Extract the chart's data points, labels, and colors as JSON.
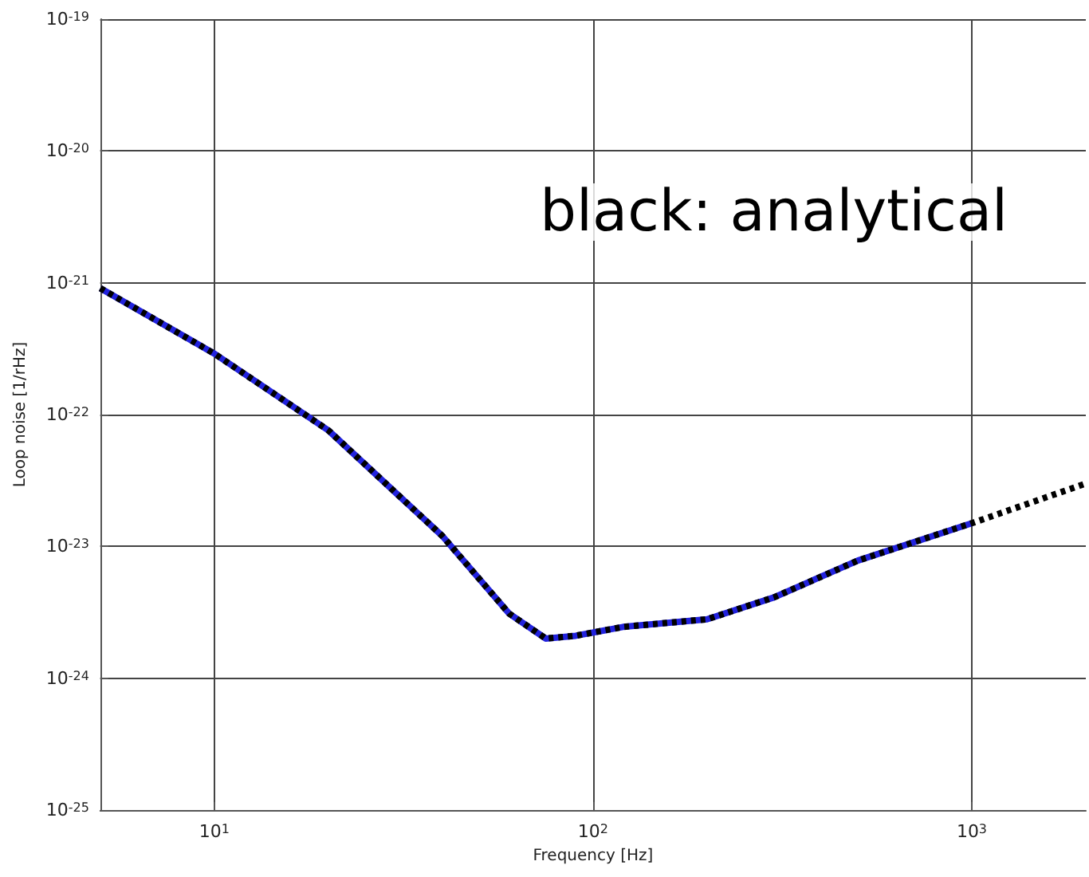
{
  "chart_data": {
    "type": "line",
    "xlabel": "Frequency [Hz]",
    "ylabel": "Loop noise [1/rHz]",
    "log": "xy",
    "grid": true,
    "marker": "none",
    "xlim": [
      5,
      2000
    ],
    "ylim": [
      1e-25,
      1e-19
    ],
    "xticks": [
      {
        "value": 10,
        "label": "10$^{1}$"
      },
      {
        "value": 100,
        "label": "10$^{2}$"
      },
      {
        "value": 1000,
        "label": "10$^{3}$"
      }
    ],
    "yticks": [
      {
        "value": 1e-25,
        "label": "10$^{-25}$"
      },
      {
        "value": 1e-24,
        "label": "10$^{-24}$"
      },
      {
        "value": 1e-23,
        "label": "10$^{-23}$"
      },
      {
        "value": 1e-22,
        "label": "10$^{-22}$"
      },
      {
        "value": 1e-21,
        "label": "10$^{-21}$"
      },
      {
        "value": 1e-20,
        "label": "10$^{-20}$"
      },
      {
        "value": 1e-19,
        "label": "10$^{-19}$"
      }
    ],
    "annotations": [
      "black: analytical"
    ],
    "series": [
      {
        "color": "#2222dd",
        "line_style": "solid",
        "x": [
          5,
          10,
          20,
          40,
          60,
          75,
          90,
          120,
          200,
          300,
          500,
          1000
        ],
        "values": [
          9.1e-22,
          2.9e-22,
          7.6e-23,
          1.2e-23,
          3.1e-24,
          2e-24,
          2.1e-24,
          2.45e-24,
          2.8e-24,
          4.1e-24,
          7.8e-24,
          1.5e-23
        ]
      },
      {
        "color": "#000000",
        "line_style": "dotted",
        "x": [
          5,
          10,
          20,
          40,
          60,
          75,
          90,
          120,
          200,
          300,
          500,
          1000,
          2000
        ],
        "values": [
          9.1e-22,
          2.9e-22,
          7.6e-23,
          1.2e-23,
          3.1e-24,
          2e-24,
          2.1e-24,
          2.45e-24,
          2.8e-24,
          4.1e-24,
          7.8e-24,
          1.5e-23,
          3e-23
        ]
      }
    ]
  }
}
